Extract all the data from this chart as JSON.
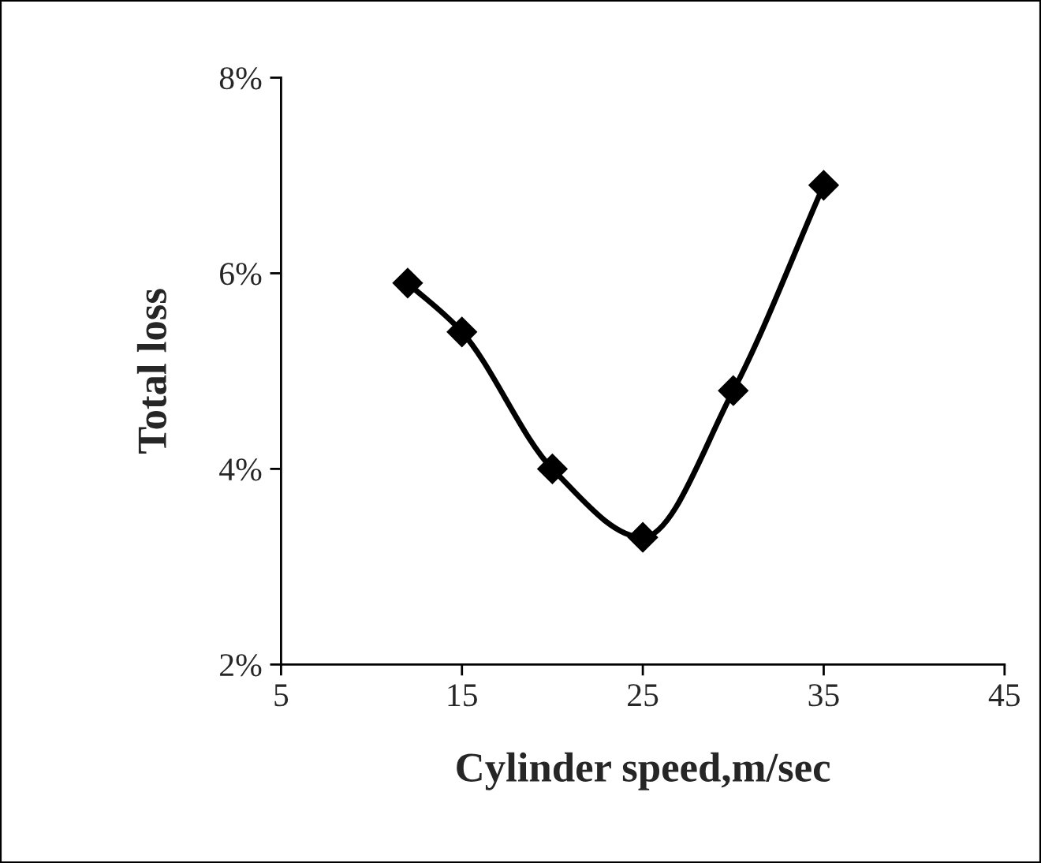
{
  "chart_data": {
    "type": "line",
    "xlabel": "Cylinder speed,m/sec",
    "ylabel": "Total loss",
    "x": [
      12,
      15,
      20,
      25,
      30,
      35
    ],
    "series": [
      {
        "color": "#000000",
        "values": [
          5.9,
          5.4,
          4.0,
          3.3,
          4.8,
          6.9
        ]
      }
    ],
    "xlim": [
      5,
      45
    ],
    "xticks": [
      5,
      15,
      25,
      35,
      45
    ],
    "ylim": [
      2,
      8
    ],
    "yticks": [
      {
        "value": 2,
        "label": "2%"
      },
      {
        "value": 4,
        "label": "4%"
      },
      {
        "value": 6,
        "label": "6%"
      },
      {
        "value": 8,
        "label": "8%"
      }
    ],
    "marker": "diamond",
    "line_style": "solid"
  }
}
